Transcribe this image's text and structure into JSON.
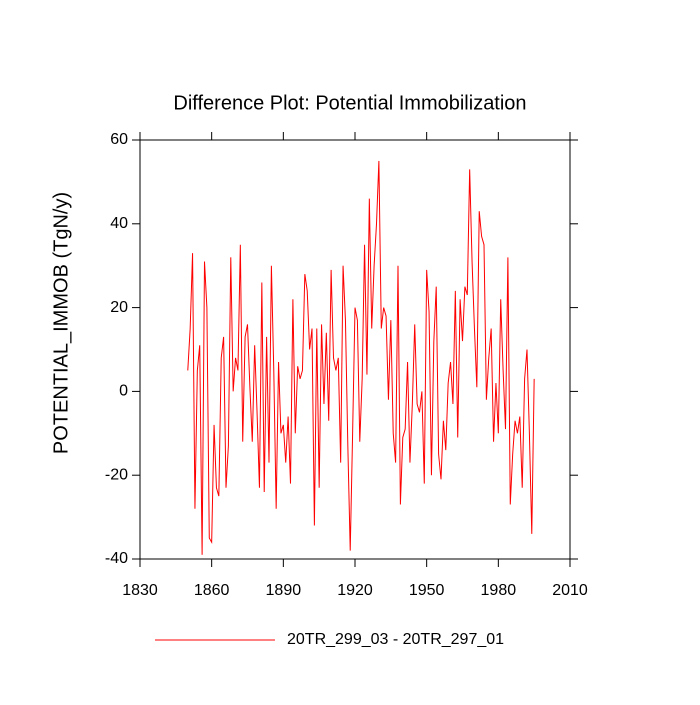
{
  "chart_data": {
    "type": "line",
    "title": "Difference Plot: Potential Immobilization",
    "ylabel": "POTENTIAL_IMMOB  (TgN/y)",
    "x": [
      1850,
      1851,
      1852,
      1853,
      1854,
      1855,
      1856,
      1857,
      1858,
      1859,
      1860,
      1861,
      1862,
      1863,
      1864,
      1865,
      1866,
      1867,
      1868,
      1869,
      1870,
      1871,
      1872,
      1873,
      1874,
      1875,
      1876,
      1877,
      1878,
      1879,
      1880,
      1881,
      1882,
      1883,
      1884,
      1885,
      1886,
      1887,
      1888,
      1889,
      1890,
      1891,
      1892,
      1893,
      1894,
      1895,
      1896,
      1897,
      1898,
      1899,
      1900,
      1901,
      1902,
      1903,
      1904,
      1905,
      1906,
      1907,
      1908,
      1909,
      1910,
      1911,
      1912,
      1913,
      1914,
      1915,
      1916,
      1917,
      1918,
      1919,
      1920,
      1921,
      1922,
      1923,
      1924,
      1925,
      1926,
      1927,
      1928,
      1929,
      1930,
      1931,
      1932,
      1933,
      1934,
      1935,
      1936,
      1937,
      1938,
      1939,
      1940,
      1941,
      1942,
      1943,
      1944,
      1945,
      1946,
      1947,
      1948,
      1949,
      1950,
      1951,
      1952,
      1953,
      1954,
      1955,
      1956,
      1957,
      1958,
      1959,
      1960,
      1961,
      1962,
      1963,
      1964,
      1965,
      1966,
      1967,
      1968,
      1969,
      1970,
      1971,
      1972,
      1973,
      1974,
      1975,
      1976,
      1977,
      1978,
      1979,
      1980,
      1981,
      1982,
      1983,
      1984,
      1985,
      1986,
      1987,
      1988,
      1989,
      1990,
      1991,
      1992,
      1993,
      1994,
      1995
    ],
    "series": [
      {
        "name": "20TR_299_03 - 20TR_297_01",
        "color": "#ff0000",
        "values": [
          5,
          15,
          33,
          -28,
          5,
          11,
          -39,
          31,
          20,
          -35,
          -36,
          -8,
          -23,
          -25,
          8,
          13,
          -23,
          -13,
          32,
          0,
          8,
          5,
          35,
          -12,
          13,
          16,
          1,
          -12,
          11,
          -5,
          -23,
          26,
          -24,
          13,
          -17,
          30,
          5,
          -28,
          7,
          -10,
          -8,
          -17,
          -6,
          -22,
          22,
          -10,
          6,
          3,
          5,
          28,
          24,
          10,
          15,
          -32,
          15,
          -23,
          16,
          -3,
          14,
          -7,
          29,
          8,
          5,
          8,
          -17,
          30,
          17,
          -13,
          -38,
          -10,
          20,
          17,
          -12,
          3,
          35,
          4,
          46,
          15,
          30,
          40,
          55,
          15,
          20,
          18,
          -2,
          17,
          -10,
          -17,
          30,
          -27,
          -11,
          -9,
          7,
          -17,
          -3,
          16,
          -3,
          -5,
          0,
          -22,
          29,
          19,
          -20,
          12,
          25,
          -15,
          -21,
          -7,
          -14,
          2,
          7,
          -3,
          24,
          -11,
          22,
          12,
          25,
          23,
          53,
          31,
          15,
          1,
          43,
          37,
          35,
          -2,
          8,
          15,
          -12,
          2,
          -10,
          22,
          5,
          -9,
          32,
          -27,
          -15,
          -7,
          -10,
          -6,
          -23,
          3,
          10,
          -10,
          -34,
          3
        ]
      }
    ],
    "xlim": [
      1830,
      2010
    ],
    "xticks": [
      1830,
      1860,
      1890,
      1920,
      1950,
      1980,
      2010
    ],
    "ylim": [
      -40,
      60
    ],
    "yticks": [
      -40,
      -20,
      0,
      20,
      40,
      60
    ]
  }
}
